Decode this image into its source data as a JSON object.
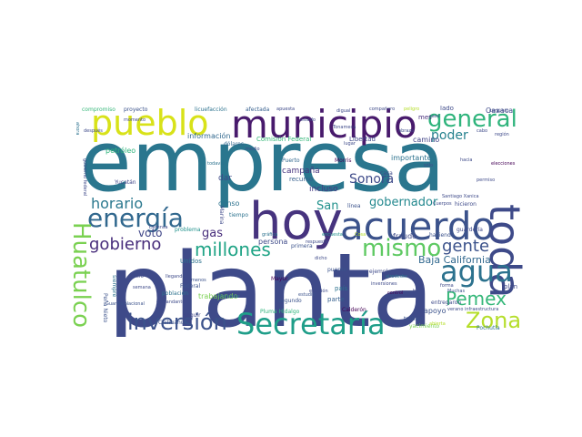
{
  "cloud": {
    "words": [
      {
        "text": "planta",
        "color": "#3e4a89"
      },
      {
        "text": "empresa",
        "color": "#2a768e"
      },
      {
        "text": "hoy",
        "color": "#46337e"
      },
      {
        "text": "acuerdo",
        "color": "#3b528b"
      },
      {
        "text": "toda",
        "color": "#3e4a89"
      },
      {
        "text": "municipio",
        "color": "#481a6c"
      },
      {
        "text": "pueblo",
        "color": "#d8e219"
      },
      {
        "text": "general",
        "color": "#2fb47c"
      },
      {
        "text": "energía",
        "color": "#31688e"
      },
      {
        "text": "Huatulco",
        "color": "#7ad151"
      },
      {
        "text": "Secretaría",
        "color": "#1f9e89"
      },
      {
        "text": "inversión",
        "color": "#3b528b"
      },
      {
        "text": "agua",
        "color": "#2c728e"
      },
      {
        "text": "mismo",
        "color": "#5ec962"
      },
      {
        "text": "Zona",
        "color": "#b5de2b"
      },
      {
        "text": "Pemex",
        "color": "#35b779"
      },
      {
        "text": "gobierno",
        "color": "#472d7b"
      },
      {
        "text": "millones",
        "color": "#20a486"
      },
      {
        "text": "gente",
        "color": "#3b528b"
      },
      {
        "text": "horario",
        "color": "#2a788e"
      },
      {
        "text": "Sonora",
        "color": "#3e4a89"
      },
      {
        "text": "gobernador",
        "color": "#23888e"
      },
      {
        "text": "poder",
        "color": "#26828e"
      },
      {
        "text": "San",
        "color": "#21918c"
      },
      {
        "text": "Baja California",
        "color": "#31688e"
      },
      {
        "text": "voto",
        "color": "#404688"
      },
      {
        "text": "gas",
        "color": "#472d7b"
      },
      {
        "text": "apoyo",
        "color": "#3b528b"
      },
      {
        "text": "importante",
        "color": "#2c728e"
      },
      {
        "text": "fraude",
        "color": "#3e4a89"
      },
      {
        "text": "incluso",
        "color": "#443983"
      },
      {
        "text": "campaña",
        "color": "#46337e"
      },
      {
        "text": "información",
        "color": "#31688e"
      },
      {
        "text": "petróleo",
        "color": "#2fb47c"
      },
      {
        "text": "trabajando",
        "color": "#7ad151"
      },
      {
        "text": "persona",
        "color": "#3e4a89"
      },
      {
        "text": "camino",
        "color": "#414487"
      },
      {
        "text": "mes",
        "color": "#472d7b"
      },
      {
        "text": "Oaxaca",
        "color": "#3e4a89"
      },
      {
        "text": "proyecto",
        "color": "#3b528b"
      },
      {
        "text": "compromiso",
        "color": "#35b779"
      },
      {
        "text": "licuefacción",
        "color": "#2c728e"
      },
      {
        "text": "afectada",
        "color": "#355f8d"
      },
      {
        "text": "dólares",
        "color": "#31688e"
      },
      {
        "text": "Comisión Federal",
        "color": "#35b779"
      },
      {
        "text": "Libertad",
        "color": "#3e4a89"
      },
      {
        "text": "Puerto",
        "color": "#31688e"
      },
      {
        "text": "Morris",
        "color": "#440154"
      },
      {
        "text": "dar",
        "color": "#3e4a89"
      },
      {
        "text": "censo",
        "color": "#2c728e"
      },
      {
        "text": "recurso",
        "color": "#355f8d"
      },
      {
        "text": "Yucatán",
        "color": "#404688"
      },
      {
        "text": "problema",
        "color": "#21918c"
      },
      {
        "text": "primera",
        "color": "#3b528b"
      },
      {
        "text": "haciendo",
        "color": "#3b528b"
      },
      {
        "text": "país",
        "color": "#2c728e"
      },
      {
        "text": "parte",
        "color": "#355f8d"
      },
      {
        "text": "ejemplo",
        "color": "#3e4a89"
      },
      {
        "text": "puente",
        "color": "#3b528b"
      },
      {
        "text": "trabajo",
        "color": "#3b528b"
      },
      {
        "text": "yacimiento",
        "color": "#7ad151"
      },
      {
        "text": "Pochutla",
        "color": "#2c728e"
      },
      {
        "text": "Calderón",
        "color": "#440154"
      },
      {
        "text": "Chihuahua",
        "color": "#3b528b"
      },
      {
        "text": "Peña Nieto",
        "color": "#3b528b"
      },
      {
        "text": "siempre",
        "color": "#2c728e"
      },
      {
        "text": "Federal",
        "color": "#3b528b"
      },
      {
        "text": "población",
        "color": "#2c728e"
      },
      {
        "text": "Mayor",
        "color": "#440154"
      },
      {
        "text": "Pluma Hidalgo",
        "color": "#2fb47c"
      },
      {
        "text": "segundo",
        "color": "#3b528b"
      },
      {
        "text": "seguir",
        "color": "#404688"
      },
      {
        "text": "Unidos",
        "color": "#2c728e"
      },
      {
        "text": "Marina",
        "color": "#3e4a89"
      },
      {
        "text": "tiempo",
        "color": "#2c728e"
      },
      {
        "text": "entregaron",
        "color": "#3e4a89"
      },
      {
        "text": "guardería",
        "color": "#3e4a89"
      },
      {
        "text": "verano infraestructura",
        "color": "#3e4a89"
      },
      {
        "text": "Santiago Xanica",
        "color": "#3e4a89"
      },
      {
        "text": "hicieron",
        "color": "#3e4a89"
      },
      {
        "text": "región",
        "color": "#3e4a89"
      },
      {
        "text": "elecciones",
        "color": "#440154"
      },
      {
        "text": "Cuerpos",
        "color": "#3e4a89"
      },
      {
        "text": "línea",
        "color": "#3b528b"
      },
      {
        "text": "encuesta",
        "color": "#21918c"
      },
      {
        "text": "Cosa",
        "color": "#b5de2b"
      },
      {
        "text": "control",
        "color": "#440154"
      },
      {
        "text": "Muchas",
        "color": "#3b528b"
      },
      {
        "text": "plan",
        "color": "#3e4a89"
      },
      {
        "text": "forma",
        "color": "#3e4a89"
      },
      {
        "text": "bien",
        "color": "#3e4a89"
      },
      {
        "text": "estudio",
        "color": "#3b528b"
      },
      {
        "text": "semana",
        "color": "#3e4a89"
      },
      {
        "text": "quiero",
        "color": "#3e4a89"
      },
      {
        "text": "comandante",
        "color": "#3e4a89"
      },
      {
        "text": "Guardia Nacional",
        "color": "#3b528b"
      },
      {
        "text": "llegando",
        "color": "#3e4a89"
      },
      {
        "text": "menos",
        "color": "#3b528b"
      },
      {
        "text": "respuesta",
        "color": "#3e4a89"
      },
      {
        "text": "digual",
        "color": "#3e4a89"
      },
      {
        "text": "compañero",
        "color": "#3e4a89"
      },
      {
        "text": "peligro",
        "color": "#b5de2b"
      },
      {
        "text": "abrazo",
        "color": "#3e4a89"
      },
      {
        "text": "lado",
        "color": "#3e4a89"
      },
      {
        "text": "conjunto",
        "color": "#3e4a89"
      },
      {
        "text": "Tonameca",
        "color": "#3e4a89"
      },
      {
        "text": "medio",
        "color": "#3e4a89"
      },
      {
        "text": "después",
        "color": "#3e4a89"
      },
      {
        "text": "Defensa",
        "color": "#3e4a89"
      },
      {
        "text": "Bienestar",
        "color": "#2c728e"
      },
      {
        "text": "apuesta",
        "color": "#3e4a89"
      },
      {
        "text": "caso",
        "color": "#3e4a89"
      },
      {
        "text": "sólo",
        "color": "#3e4a89"
      },
      {
        "text": "alrededor",
        "color": "#2c728e"
      },
      {
        "text": "inversiones",
        "color": "#3e4a89"
      },
      {
        "text": "todavía",
        "color": "#2c728e"
      },
      {
        "text": "gráfica",
        "color": "#2c728e"
      },
      {
        "text": "elección",
        "color": "#3e4a89"
      },
      {
        "text": "dicho",
        "color": "#3e4a89"
      },
      {
        "text": "abierta",
        "color": "#b5de2b"
      },
      {
        "text": "casa",
        "color": "#3e4a89"
      },
      {
        "text": "permiso",
        "color": "#3e4a89"
      },
      {
        "text": "estado",
        "color": "#3e4a89"
      },
      {
        "text": "momento",
        "color": "#3e4a89"
      },
      {
        "text": "cabo",
        "color": "#3e4a89"
      },
      {
        "text": "lugar",
        "color": "#3e4a89"
      },
      {
        "text": "ahora",
        "color": "#2c728e"
      },
      {
        "text": "hacia",
        "color": "#3e4a89"
      },
      {
        "text": "gobierno federal",
        "color": "#3e4a89"
      }
    ]
  }
}
